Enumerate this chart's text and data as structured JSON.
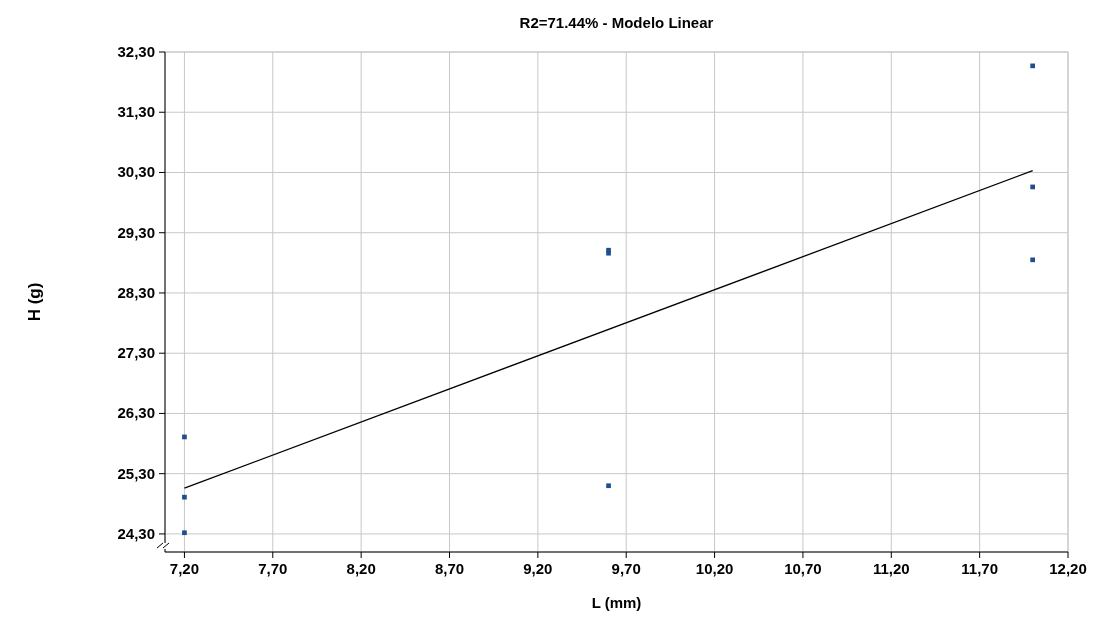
{
  "chart_data": {
    "type": "scatter",
    "title": "R2=71.44%  -  Modelo  Linear",
    "xlabel": "L (mm)",
    "ylabel": "H (g)",
    "xlim": [
      7.09,
      12.2
    ],
    "ylim": [
      24.0,
      32.3
    ],
    "xticks": [
      {
        "value": 7.2,
        "label": "7,20"
      },
      {
        "value": 7.7,
        "label": "7,70"
      },
      {
        "value": 8.2,
        "label": "8,20"
      },
      {
        "value": 8.7,
        "label": "8,70"
      },
      {
        "value": 9.2,
        "label": "9,20"
      },
      {
        "value": 9.7,
        "label": "9,70"
      },
      {
        "value": 10.2,
        "label": "10,20"
      },
      {
        "value": 10.7,
        "label": "10,70"
      },
      {
        "value": 11.2,
        "label": "11,20"
      },
      {
        "value": 11.7,
        "label": "11,70"
      },
      {
        "value": 12.2,
        "label": "12,20"
      }
    ],
    "yticks": [
      {
        "value": 24.3,
        "label": "24,30"
      },
      {
        "value": 25.3,
        "label": "25,30"
      },
      {
        "value": 26.3,
        "label": "26,30"
      },
      {
        "value": 27.3,
        "label": "27,30"
      },
      {
        "value": 28.3,
        "label": "28,30"
      },
      {
        "value": 29.3,
        "label": "29,30"
      },
      {
        "value": 30.3,
        "label": "30,30"
      },
      {
        "value": 31.3,
        "label": "31,30"
      },
      {
        "value": 32.3,
        "label": "32,30"
      }
    ],
    "grid": true,
    "series": [
      {
        "marker": "square",
        "color": "#1f4e8c",
        "x": [
          7.2,
          7.2,
          7.2,
          9.6,
          9.6,
          9.6,
          12.0,
          12.0,
          12.0
        ],
        "values": [
          25.91,
          24.91,
          24.32,
          29.01,
          28.96,
          25.1,
          32.07,
          30.06,
          28.85
        ]
      },
      {
        "type": "line",
        "marker": "none",
        "color": "#000000",
        "x": [
          7.2,
          12.0
        ],
        "values": [
          25.06,
          30.33
        ]
      }
    ]
  }
}
